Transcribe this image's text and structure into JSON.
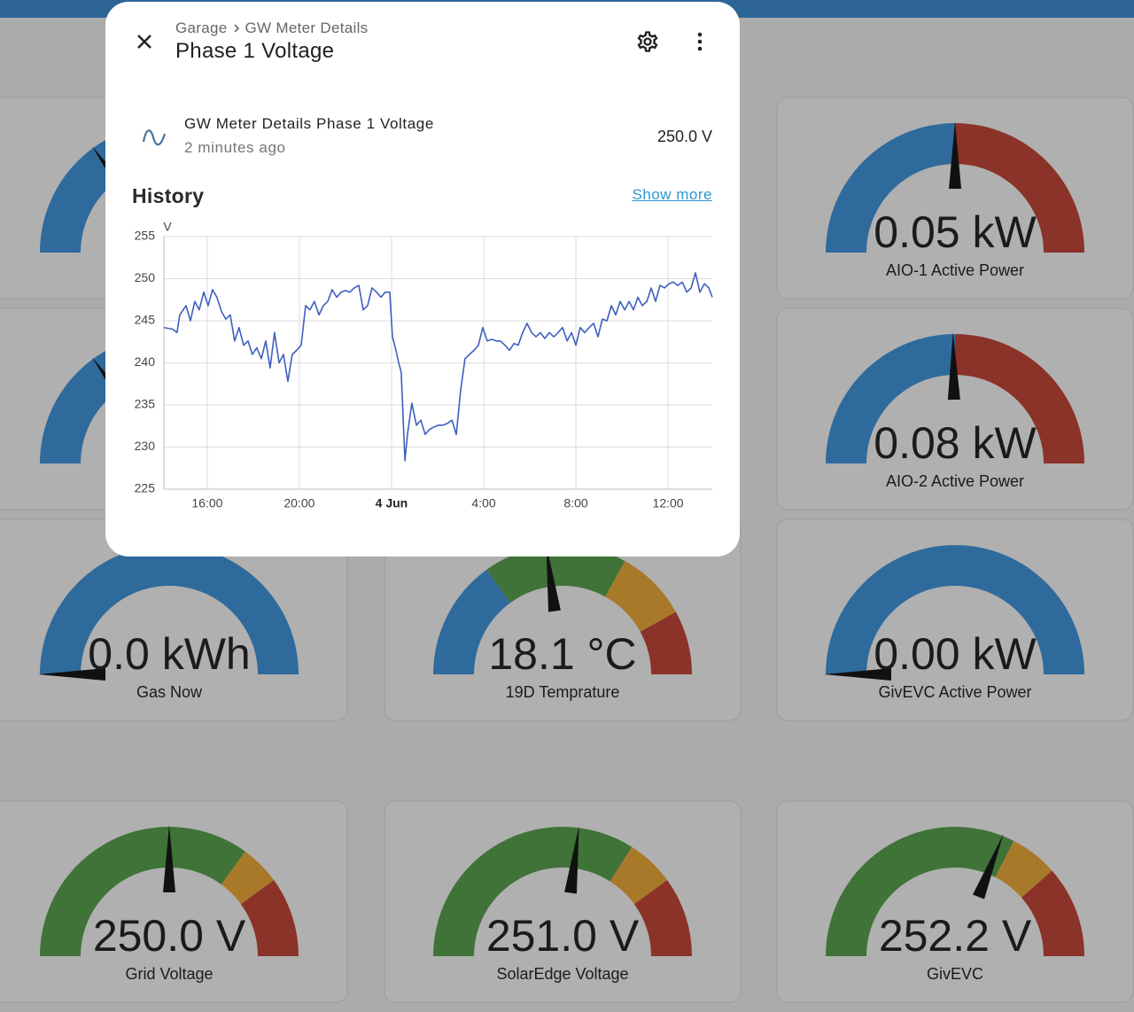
{
  "dashboard": {
    "cards": [
      {
        "value": "0.05 kW",
        "name": "AIO-1 Active Power"
      },
      {
        "value": "0.08 kW",
        "name": "AIO-2 Active Power"
      },
      {
        "value": "0.0 kWh",
        "name": "Gas Now"
      },
      {
        "value": "18.1 °C",
        "name": "19D Temprature"
      },
      {
        "value": "0.00 kW",
        "name": "GivEVC Active Power"
      },
      {
        "value": "250.0 V",
        "name": "Grid Voltage"
      },
      {
        "value": "251.0 V",
        "name": "SolarEdge Voltage"
      },
      {
        "value": "252.2 V",
        "name": "GivEVC"
      }
    ]
  },
  "dialog": {
    "breadcrumb": [
      "Garage",
      "GW Meter Details"
    ],
    "title": "Phase 1 Voltage",
    "entity": {
      "name": "GW Meter Details Phase 1 Voltage",
      "updated": "2 minutes ago",
      "state": "250.0 V"
    },
    "history_heading": "History",
    "show_more": "Show more"
  },
  "chart_data": {
    "type": "line",
    "y_label": "V",
    "x": [
      14.12,
      14.5,
      14.69,
      14.81,
      15.08,
      15.27,
      15.46,
      15.65,
      15.85,
      16.04,
      16.23,
      16.42,
      16.62,
      16.81,
      17.0,
      17.19,
      17.38,
      17.58,
      17.77,
      17.96,
      18.15,
      18.35,
      18.54,
      18.73,
      18.92,
      19.12,
      19.31,
      19.5,
      19.69,
      19.88,
      20.08,
      20.27,
      20.46,
      20.65,
      20.85,
      21.04,
      21.23,
      21.42,
      21.62,
      21.81,
      22.0,
      22.19,
      22.38,
      22.58,
      22.77,
      22.96,
      23.15,
      23.35,
      23.54,
      23.73,
      23.92,
      24.04,
      24.19,
      24.31,
      24.42,
      24.58,
      24.69,
      24.88,
      25.08,
      25.27,
      25.46,
      25.65,
      25.85,
      26.04,
      26.23,
      26.42,
      26.62,
      26.81,
      27.0,
      27.19,
      27.38,
      27.58,
      27.77,
      27.96,
      28.15,
      28.35,
      28.54,
      28.73,
      28.92,
      29.12,
      29.31,
      29.5,
      29.69,
      29.88,
      30.08,
      30.27,
      30.46,
      30.65,
      30.85,
      31.04,
      31.23,
      31.42,
      31.62,
      31.81,
      32.0,
      32.19,
      32.38,
      32.58,
      32.77,
      32.96,
      33.15,
      33.35,
      33.54,
      33.73,
      33.92,
      34.12,
      34.31,
      34.5,
      34.69,
      34.88,
      35.08,
      35.27,
      35.46,
      35.65,
      35.85,
      36.04,
      36.23,
      36.42,
      36.62,
      36.81,
      37.0,
      37.19,
      37.38,
      37.58,
      37.77,
      37.92
    ],
    "series": [
      {
        "color": "#3f5fbf",
        "values": [
          244.2,
          244.0,
          243.6,
          245.7,
          246.8,
          245.0,
          247.3,
          246.3,
          248.4,
          246.8,
          248.7,
          247.8,
          246.1,
          245.2,
          245.7,
          242.6,
          244.2,
          242.1,
          242.6,
          241.0,
          241.8,
          240.5,
          242.6,
          239.4,
          243.6,
          240.0,
          241.0,
          237.8,
          241.0,
          241.5,
          242.1,
          246.8,
          246.3,
          247.3,
          245.7,
          246.8,
          247.3,
          248.7,
          247.8,
          248.4,
          248.6,
          248.4,
          248.9,
          249.2,
          246.3,
          246.8,
          248.9,
          248.4,
          247.8,
          248.4,
          248.4,
          243.1,
          241.5,
          240.0,
          238.9,
          228.4,
          231.5,
          235.2,
          232.6,
          233.2,
          231.5,
          232.1,
          232.4,
          232.6,
          232.6,
          232.8,
          233.2,
          231.5,
          236.8,
          240.5,
          241.0,
          241.5,
          242.1,
          244.2,
          242.6,
          242.8,
          242.6,
          242.6,
          242.1,
          241.5,
          242.3,
          242.1,
          243.6,
          244.7,
          243.6,
          243.1,
          243.6,
          242.9,
          243.6,
          243.1,
          243.6,
          244.2,
          242.6,
          243.6,
          242.1,
          244.2,
          243.6,
          244.2,
          244.7,
          243.1,
          245.2,
          245.0,
          246.8,
          245.7,
          247.3,
          246.3,
          247.3,
          246.3,
          247.8,
          246.8,
          247.3,
          248.9,
          247.3,
          249.2,
          248.9,
          249.4,
          249.6,
          249.2,
          249.6,
          248.4,
          248.9,
          250.7,
          248.4,
          249.4,
          248.9,
          247.8
        ]
      }
    ],
    "xlim": [
      14.12,
      37.92
    ],
    "xticks": [
      {
        "value": 16,
        "label": "16:00"
      },
      {
        "value": 20,
        "label": "20:00"
      },
      {
        "value": 24,
        "label": "4 Jun"
      },
      {
        "value": 28,
        "label": "4:00"
      },
      {
        "value": 32,
        "label": "8:00"
      },
      {
        "value": 36,
        "label": "12:00"
      }
    ],
    "ylim": [
      225,
      255
    ],
    "yticks": [
      225,
      230,
      235,
      240,
      245,
      250,
      255
    ],
    "grid": true
  }
}
